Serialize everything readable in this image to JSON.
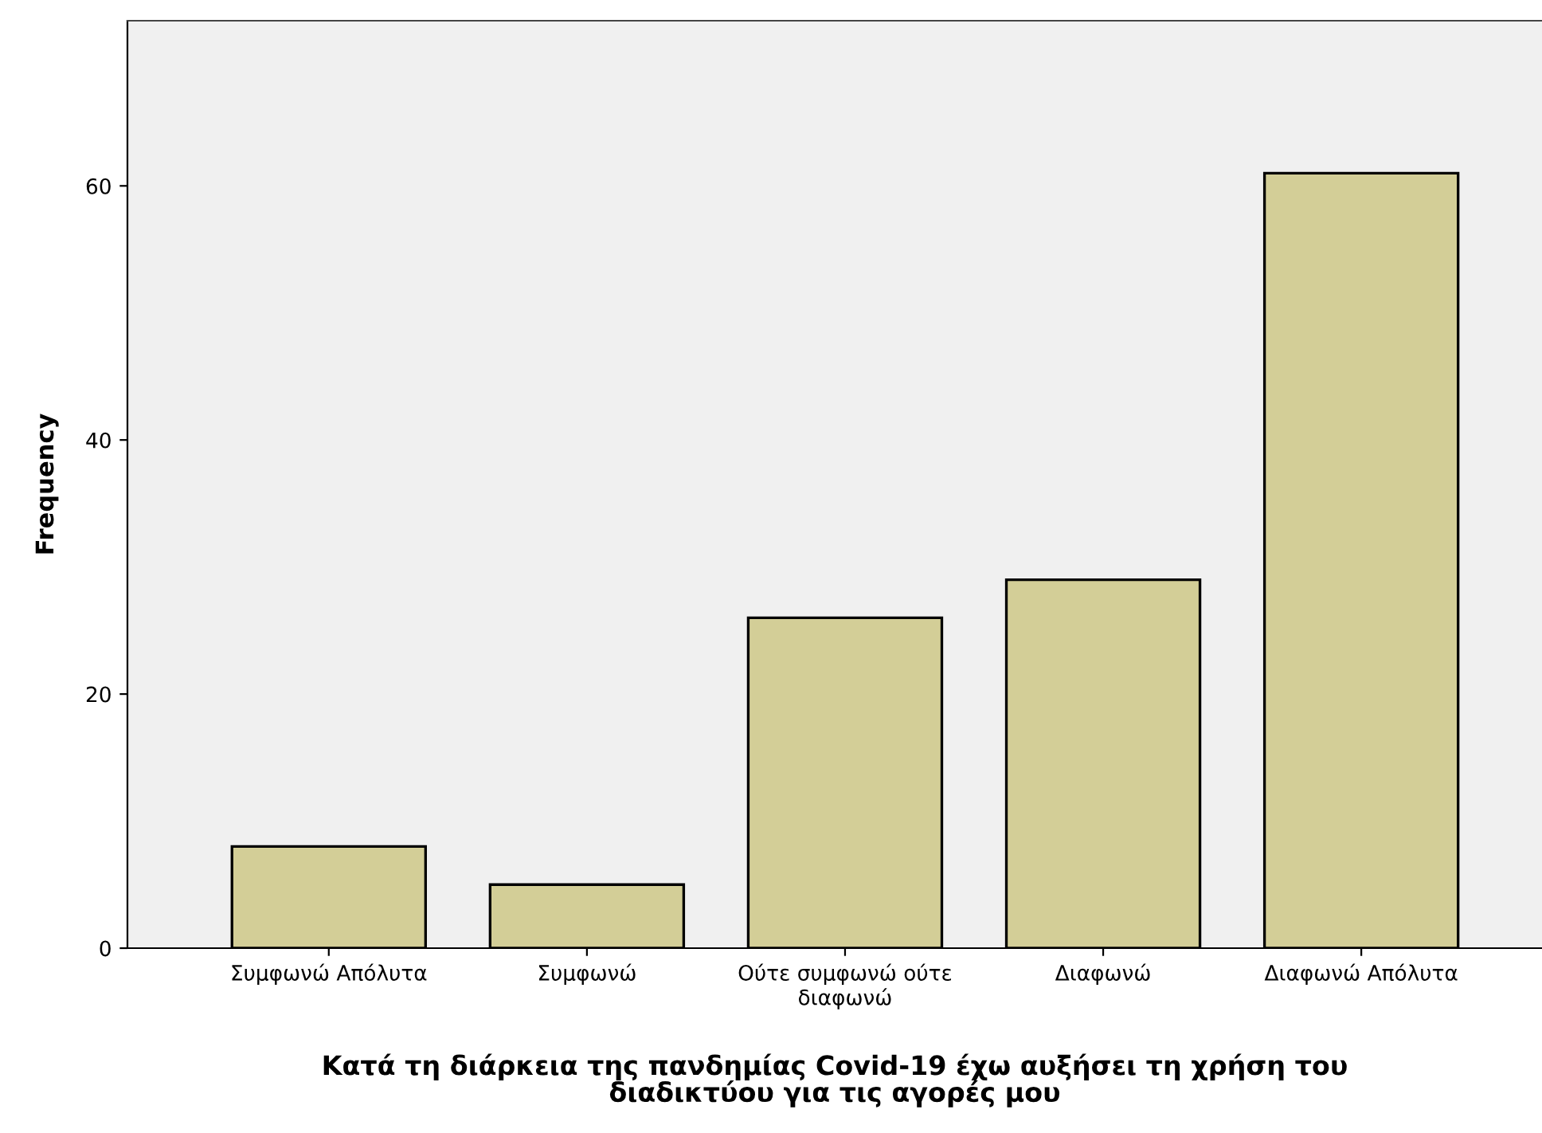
{
  "chart_data": {
    "type": "bar",
    "xlabel": "Κατά τη διάρκεια της πανδημίας Covid-19 έχω αυξήσει τη χρήση του\nδιαδικτύου για τις αγορές μου",
    "ylabel": "Frequency",
    "categories": [
      "Συμφωνώ Απόλυτα",
      "Συμφωνώ",
      "Ούτε συμφωνώ ούτε\nδιαφωνώ",
      "Διαφωνώ",
      "Διαφωνώ Απόλυτα"
    ],
    "values": [
      8,
      5,
      26,
      29,
      61
    ],
    "color": "#d3ce97",
    "ylim": [
      0,
      73
    ],
    "yticks": [
      0,
      20,
      40,
      60
    ],
    "grid": false,
    "legend": false
  }
}
